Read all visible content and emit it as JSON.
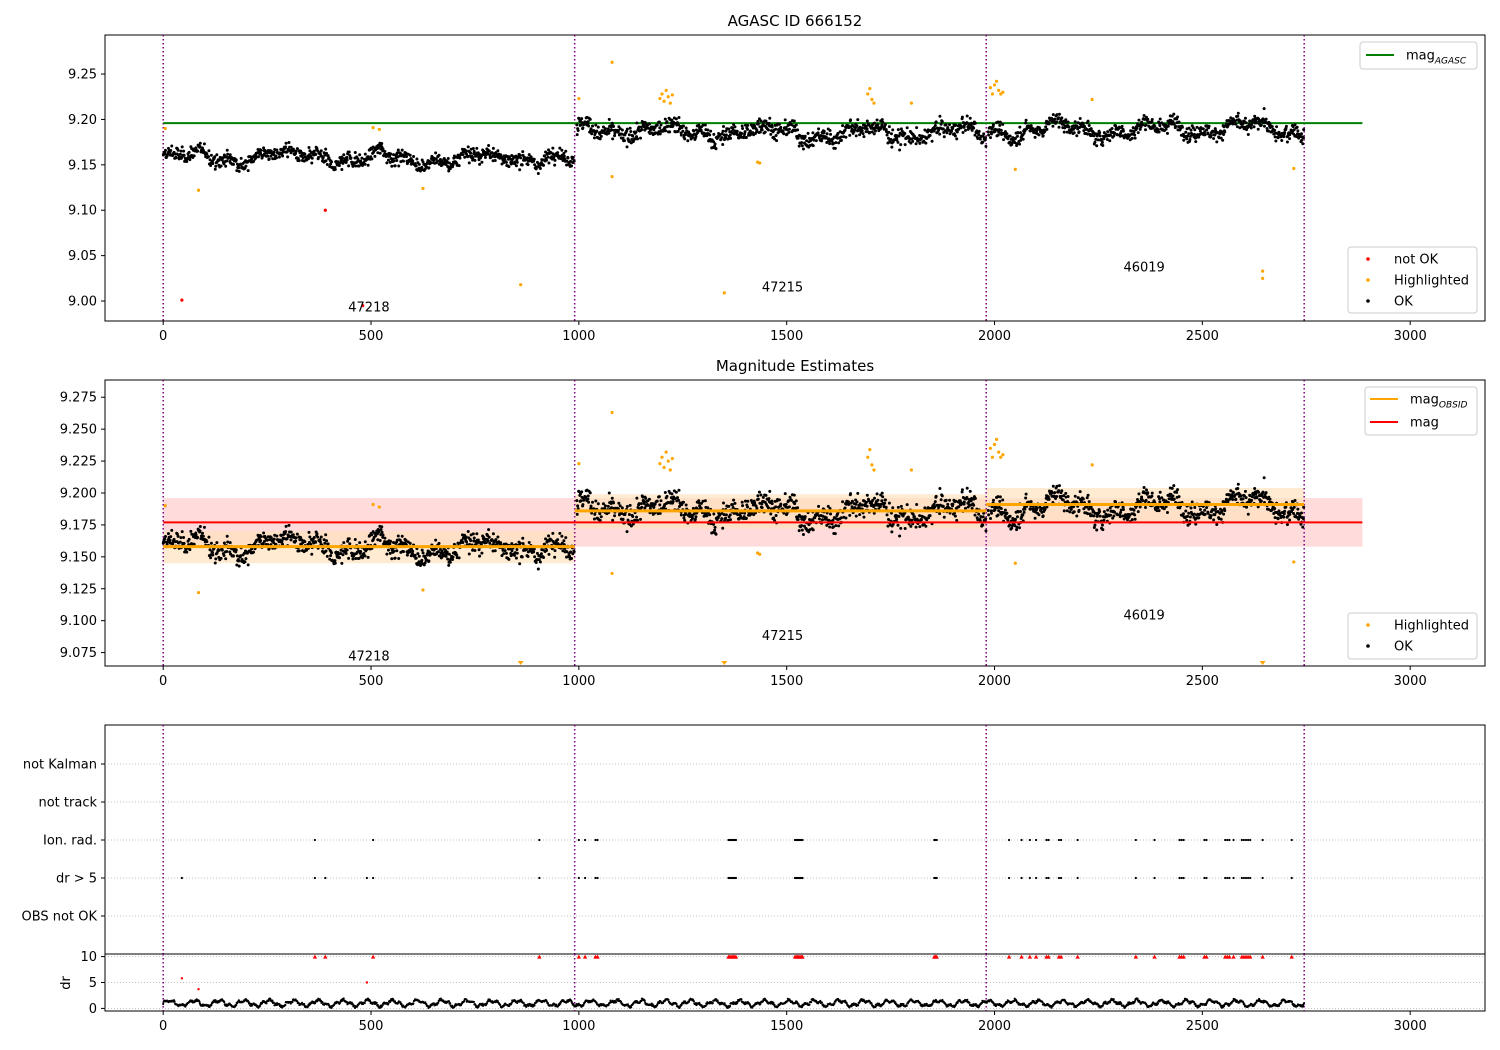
{
  "figure": {
    "background": "#ffffff",
    "colors": {
      "ok": "#000000",
      "highlighted": "#ffa500",
      "not_ok": "#ff0000",
      "mag_agasc": "#008000",
      "mag_obsid": "#ffa500",
      "mag": "#ff0000",
      "boundary": "#800080",
      "band_mag": "#ffcccc",
      "band_obsid": "#ffe3bd"
    },
    "obsid_boundaries": [
      0,
      990,
      1980,
      2745
    ]
  },
  "chart_data": [
    {
      "id": "agasc",
      "type": "scatter",
      "title": "AGASC ID 666152",
      "xlim": [
        -140,
        3180
      ],
      "ylim": [
        8.978,
        9.293
      ],
      "xticks": [
        0,
        500,
        1000,
        1500,
        2000,
        2500,
        3000
      ],
      "yticks": [
        9.0,
        9.05,
        9.1,
        9.15,
        9.2,
        9.25
      ],
      "ytick_decimals": 2,
      "mag_agasc": 9.196,
      "mag_agasc_xrange": [
        0,
        2885
      ],
      "legend_upper": [
        {
          "label": "mag",
          "sub": "AGASC",
          "kind": "line",
          "color_key": "mag_agasc"
        }
      ],
      "legend_lower": [
        {
          "label": "not OK",
          "kind": "dot",
          "color_key": "not_ok"
        },
        {
          "label": "Highlighted",
          "kind": "dot",
          "color_key": "highlighted"
        },
        {
          "label": "OK",
          "kind": "dot",
          "color_key": "ok"
        }
      ],
      "segments": [
        {
          "x0": 0,
          "x1": 990,
          "base": 9.158,
          "amp": 0.011
        },
        {
          "x0": 995,
          "x1": 1980,
          "base": 9.186,
          "amp": 0.013
        },
        {
          "x0": 1985,
          "x1": 2745,
          "base": 9.19,
          "amp": 0.012
        }
      ],
      "obsid_labels": [
        {
          "text": "47218",
          "x": 495,
          "y": 8.993
        },
        {
          "text": "47215",
          "x": 1490,
          "y": 9.015
        },
        {
          "text": "46019",
          "x": 2360,
          "y": 9.037
        }
      ],
      "highlighted_points": [
        [
          5,
          9.19
        ],
        [
          85,
          9.122
        ],
        [
          505,
          9.191
        ],
        [
          520,
          9.189
        ],
        [
          625,
          9.124
        ],
        [
          860,
          9.018
        ],
        [
          1000,
          9.223
        ],
        [
          1080,
          9.263
        ],
        [
          1080,
          9.137
        ],
        [
          1195,
          9.223
        ],
        [
          1200,
          9.228
        ],
        [
          1205,
          9.22
        ],
        [
          1210,
          9.232
        ],
        [
          1215,
          9.225
        ],
        [
          1220,
          9.218
        ],
        [
          1225,
          9.227
        ],
        [
          1350,
          9.009
        ],
        [
          1430,
          9.153
        ],
        [
          1435,
          9.152
        ],
        [
          1695,
          9.228
        ],
        [
          1700,
          9.234
        ],
        [
          1705,
          9.222
        ],
        [
          1710,
          9.218
        ],
        [
          1800,
          9.218
        ],
        [
          1990,
          9.235
        ],
        [
          1995,
          9.228
        ],
        [
          2000,
          9.238
        ],
        [
          2005,
          9.242
        ],
        [
          2010,
          9.232
        ],
        [
          2015,
          9.228
        ],
        [
          2020,
          9.23
        ],
        [
          2050,
          9.145
        ],
        [
          2235,
          9.222
        ],
        [
          2645,
          9.033
        ],
        [
          2645,
          9.025
        ],
        [
          2720,
          9.146
        ]
      ],
      "not_ok_points": [
        [
          45,
          9.001
        ],
        [
          390,
          9.1
        ],
        [
          480,
          8.995
        ]
      ]
    },
    {
      "id": "estimates",
      "type": "scatter",
      "title": "Magnitude Estimates",
      "xlim": [
        -140,
        3180
      ],
      "ylim": [
        9.0645,
        9.2885
      ],
      "xticks": [
        0,
        500,
        1000,
        1500,
        2000,
        2500,
        3000
      ],
      "yticks": [
        9.075,
        9.1,
        9.125,
        9.15,
        9.175,
        9.2,
        9.225,
        9.25,
        9.275
      ],
      "ytick_decimals": 3,
      "mag": 9.177,
      "mag_band": [
        9.158,
        9.196
      ],
      "mag_xrange": [
        0,
        2885
      ],
      "obsid_mags": [
        {
          "x0": 0,
          "x1": 990,
          "mag": 9.158,
          "band": [
            9.145,
            9.17
          ]
        },
        {
          "x0": 990,
          "x1": 1980,
          "mag": 9.186,
          "band": [
            9.172,
            9.199
          ]
        },
        {
          "x0": 1980,
          "x1": 2745,
          "mag": 9.191,
          "band": [
            9.178,
            9.204
          ]
        }
      ],
      "legend_upper": [
        {
          "label": "mag",
          "sub": "OBSID",
          "kind": "line",
          "color_key": "mag_obsid"
        },
        {
          "label": "mag",
          "kind": "line",
          "color_key": "mag"
        }
      ],
      "legend_lower": [
        {
          "label": "Highlighted",
          "kind": "dot",
          "color_key": "highlighted"
        },
        {
          "label": "OK",
          "kind": "dot",
          "color_key": "ok"
        }
      ],
      "obsid_labels": [
        {
          "text": "47218",
          "x": 495,
          "y": 9.072
        },
        {
          "text": "47215",
          "x": 1490,
          "y": 9.088
        },
        {
          "text": "46019",
          "x": 2360,
          "y": 9.104
        }
      ],
      "lower_markers": [
        860,
        1350,
        2645
      ],
      "highlighted_points": [
        [
          5,
          9.19
        ],
        [
          85,
          9.122
        ],
        [
          505,
          9.191
        ],
        [
          520,
          9.189
        ],
        [
          625,
          9.124
        ],
        [
          1000,
          9.223
        ],
        [
          1080,
          9.263
        ],
        [
          1080,
          9.137
        ],
        [
          1195,
          9.223
        ],
        [
          1200,
          9.228
        ],
        [
          1205,
          9.22
        ],
        [
          1210,
          9.232
        ],
        [
          1215,
          9.225
        ],
        [
          1220,
          9.218
        ],
        [
          1225,
          9.227
        ],
        [
          1430,
          9.153
        ],
        [
          1435,
          9.152
        ],
        [
          1695,
          9.228
        ],
        [
          1700,
          9.234
        ],
        [
          1705,
          9.222
        ],
        [
          1710,
          9.218
        ],
        [
          1800,
          9.218
        ],
        [
          1990,
          9.235
        ],
        [
          1995,
          9.228
        ],
        [
          2000,
          9.238
        ],
        [
          2005,
          9.242
        ],
        [
          2010,
          9.232
        ],
        [
          2015,
          9.228
        ],
        [
          2020,
          9.23
        ],
        [
          2050,
          9.145
        ],
        [
          2235,
          9.222
        ],
        [
          2720,
          9.146
        ]
      ]
    },
    {
      "id": "flags",
      "type": "scatter",
      "title": "",
      "xlim": [
        -140,
        3180
      ],
      "categories": [
        "OBS not OK",
        "dr > 5",
        "Ion. rad.",
        "not track",
        "not Kalman"
      ],
      "flag_x": {
        "dr > 5": [
          45,
          365,
          390,
          490,
          505,
          905,
          1000,
          1015,
          1040,
          1045,
          1360,
          1363,
          1366,
          1369,
          1372,
          1375,
          1378,
          1520,
          1523,
          1526,
          1529,
          1532,
          1535,
          1538,
          1855,
          1858,
          1861,
          2035,
          2065,
          2085,
          2100,
          2125,
          2130,
          2155,
          2160,
          2200,
          2340,
          2385,
          2445,
          2450,
          2455,
          2505,
          2510,
          2555,
          2560,
          2565,
          2575,
          2595,
          2600,
          2605,
          2610,
          2615,
          2645,
          2715
        ],
        "Ion. rad.": [
          365,
          505,
          905,
          1000,
          1015,
          1040,
          1045,
          1360,
          1363,
          1366,
          1369,
          1372,
          1375,
          1378,
          1520,
          1523,
          1526,
          1529,
          1532,
          1535,
          1538,
          1855,
          1858,
          1861,
          2035,
          2065,
          2085,
          2100,
          2125,
          2130,
          2155,
          2160,
          2200,
          2340,
          2385,
          2445,
          2450,
          2455,
          2505,
          2510,
          2555,
          2560,
          2565,
          2575,
          2595,
          2600,
          2605,
          2610,
          2615,
          2645,
          2715
        ]
      }
    },
    {
      "id": "dr",
      "type": "scatter",
      "title": "",
      "ylabel": "dr",
      "xlim": [
        -140,
        3180
      ],
      "ylim": [
        -0.5,
        10.5
      ],
      "xticks": [
        0,
        500,
        1000,
        1500,
        2000,
        2500,
        3000
      ],
      "yticks": [
        0,
        5,
        10
      ],
      "ytick_decimals": 0,
      "clip_value": 10,
      "big_dr_points": [
        [
          45,
          5.8
        ],
        [
          85,
          3.7
        ],
        [
          490,
          5.0
        ]
      ],
      "clipped_x": [
        365,
        390,
        505,
        905,
        1000,
        1015,
        1040,
        1045,
        1360,
        1363,
        1366,
        1369,
        1372,
        1375,
        1378,
        1520,
        1523,
        1526,
        1529,
        1532,
        1535,
        1538,
        1855,
        1858,
        1861,
        2035,
        2065,
        2085,
        2100,
        2125,
        2130,
        2155,
        2160,
        2200,
        2340,
        2385,
        2445,
        2450,
        2455,
        2505,
        2510,
        2555,
        2560,
        2565,
        2575,
        2595,
        2600,
        2605,
        2610,
        2615,
        2645,
        2715
      ]
    }
  ]
}
